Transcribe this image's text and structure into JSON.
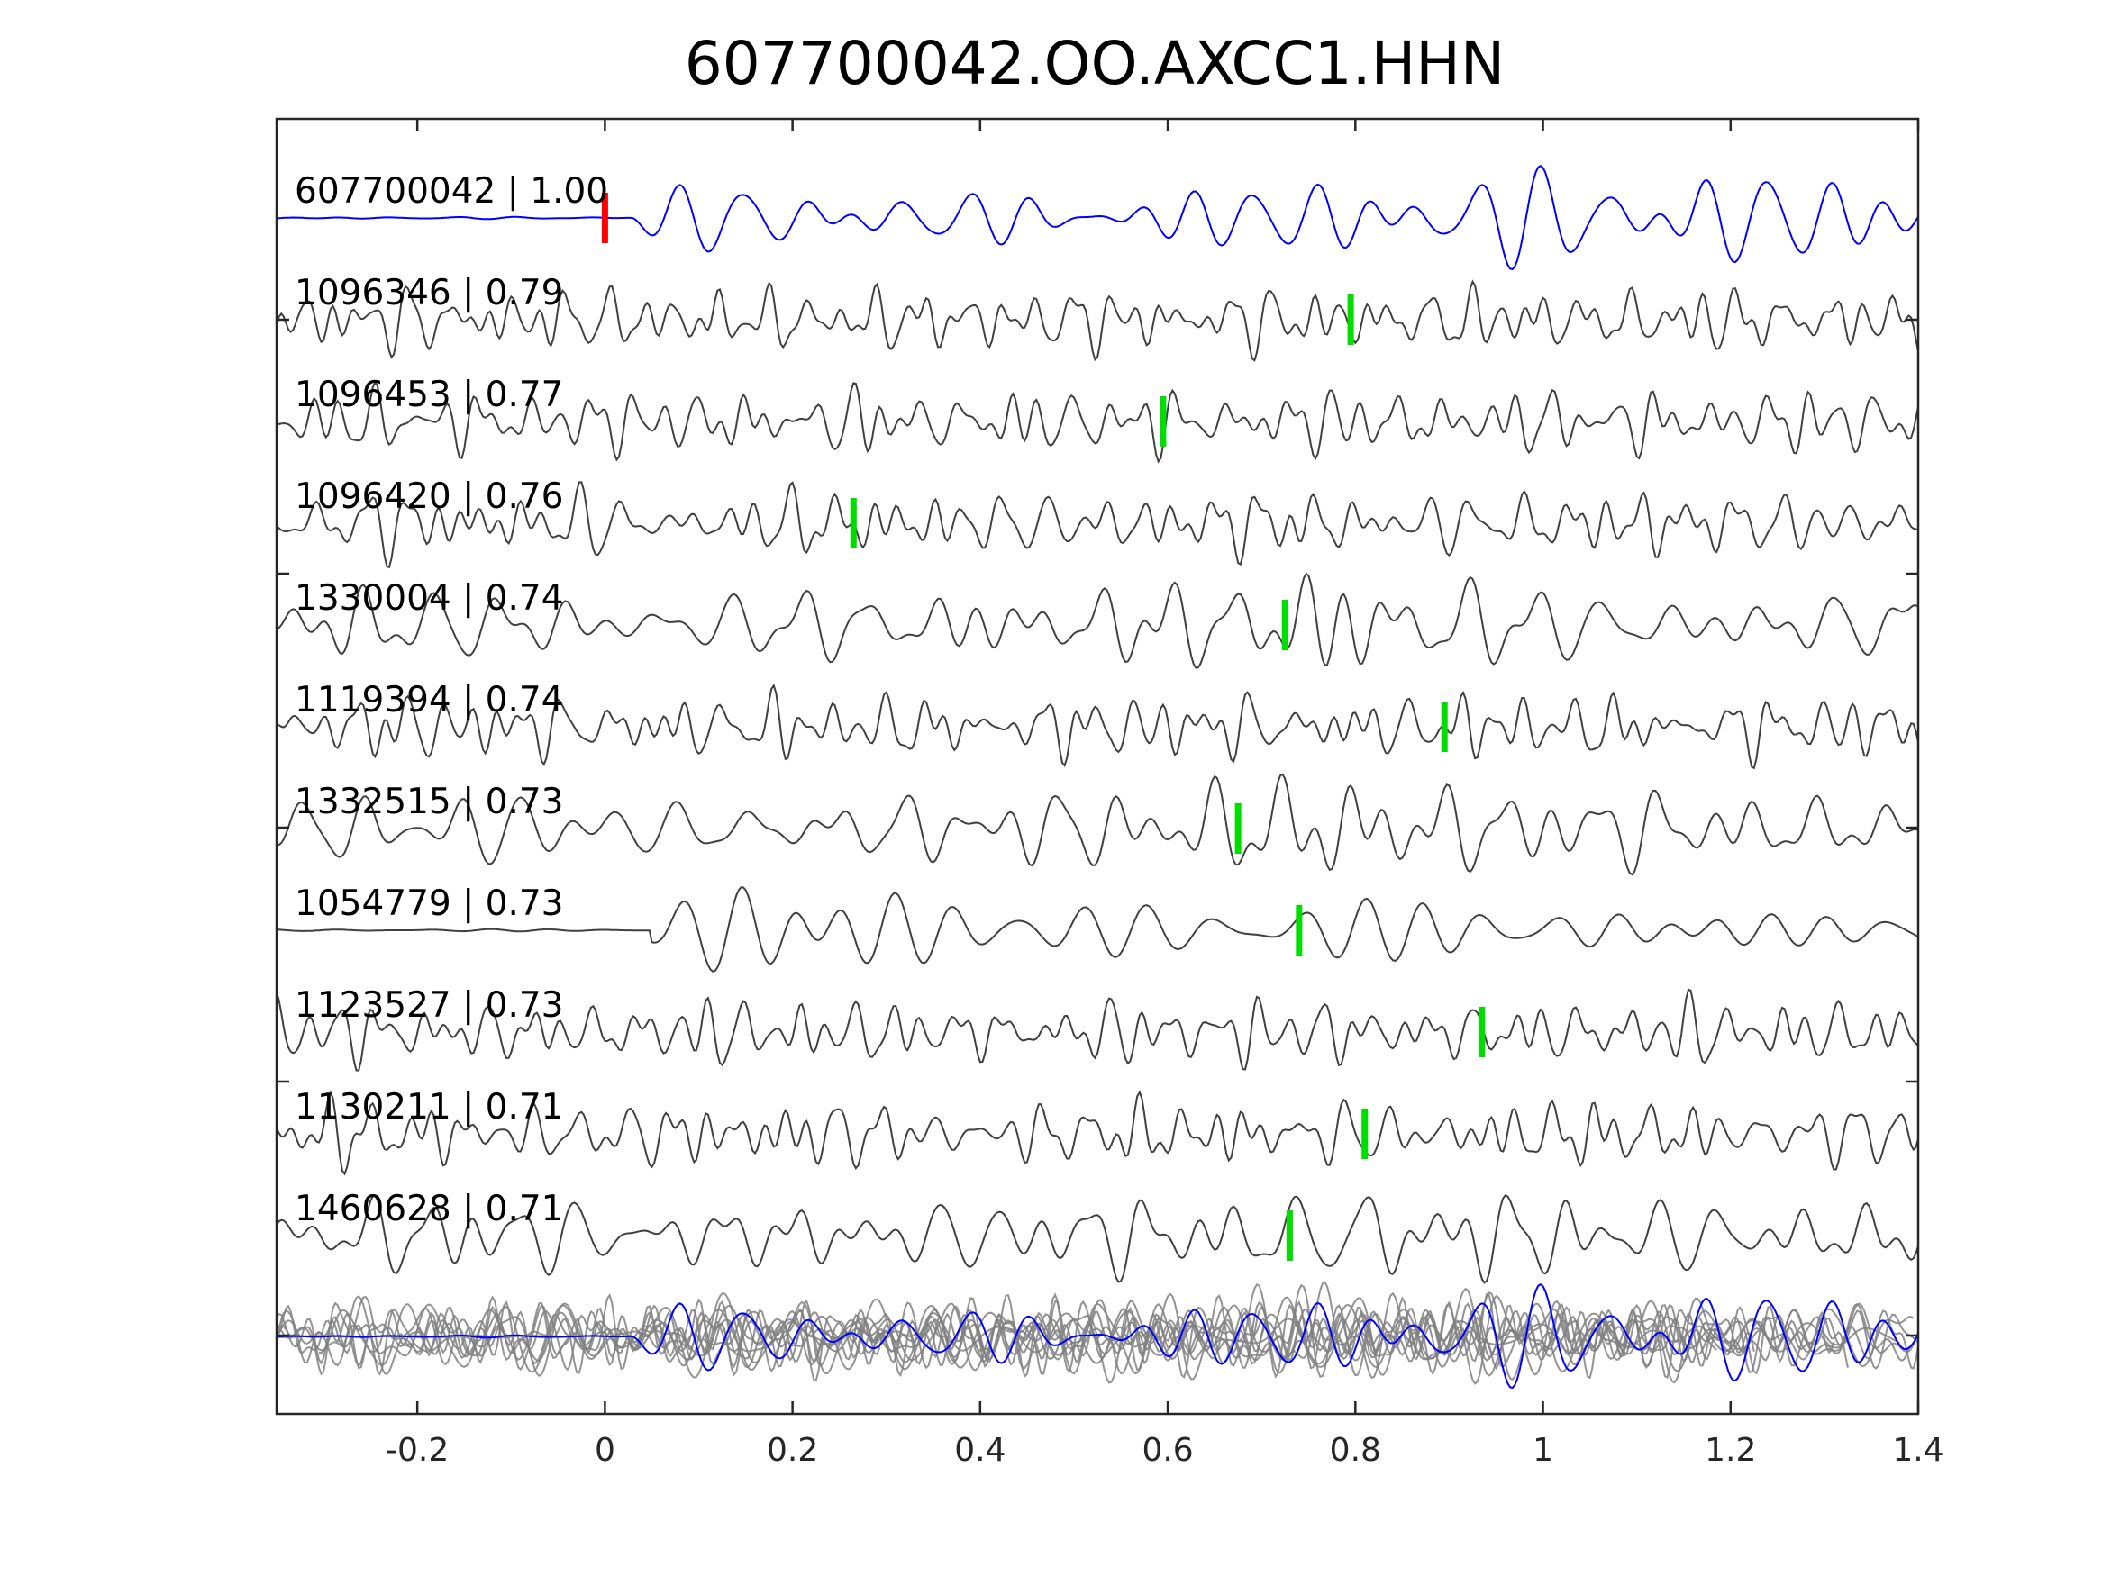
{
  "chart_data": {
    "type": "line",
    "title": "607700042.OO.AXCC1.HHN",
    "xlabel": "",
    "ylabel": "",
    "xlim": [
      -0.35,
      1.4
    ],
    "xticks": [
      {
        "value": -0.2,
        "label": "-0.2"
      },
      {
        "value": 0,
        "label": "0"
      },
      {
        "value": 0.2,
        "label": "0.2"
      },
      {
        "value": 0.4,
        "label": "0.4"
      },
      {
        "value": 0.6,
        "label": "0.6"
      },
      {
        "value": 0.8,
        "label": "0.8"
      },
      {
        "value": 1,
        "label": "1"
      },
      {
        "value": 1.2,
        "label": "1.2"
      },
      {
        "value": 1.4,
        "label": "1.4"
      }
    ],
    "grid": false,
    "colors": {
      "template": "#0000ff",
      "match": "#404040",
      "overlay": "#808080",
      "pick_template": "#ff0000",
      "pick_match": "#00dd00",
      "axes": "#262626"
    },
    "traces": [
      {
        "id": "607700042",
        "cc": "1.00",
        "label": "607700042 | 1.00",
        "pick": 0.0,
        "template": true,
        "onset": 0.03,
        "style": "smooth",
        "seed": 11
      },
      {
        "id": "1096346",
        "cc": "0.79",
        "label": "1096346 | 0.79",
        "pick": 0.795,
        "onset": -1,
        "style": "noisy",
        "seed": 23
      },
      {
        "id": "1096453",
        "cc": "0.77",
        "label": "1096453 | 0.77",
        "pick": 0.595,
        "onset": -1,
        "style": "noisy",
        "seed": 37
      },
      {
        "id": "1096420",
        "cc": "0.76",
        "label": "1096420 | 0.76",
        "pick": 0.265,
        "onset": -1,
        "style": "noisy",
        "seed": 41
      },
      {
        "id": "1330004",
        "cc": "0.74",
        "label": "1330004 | 0.74",
        "pick": 0.725,
        "onset": -1,
        "style": "medium",
        "seed": 53
      },
      {
        "id": "1119394",
        "cc": "0.74",
        "label": "1119394 | 0.74",
        "pick": 0.895,
        "onset": -1,
        "style": "noisy",
        "seed": 67
      },
      {
        "id": "1332515",
        "cc": "0.73",
        "label": "1332515 | 0.73",
        "pick": 0.675,
        "onset": -1,
        "style": "medium",
        "seed": 71
      },
      {
        "id": "1054779",
        "cc": "0.73",
        "label": "1054779 | 0.73",
        "pick": 0.74,
        "onset": 0.05,
        "style": "smooth",
        "seed": 83
      },
      {
        "id": "1123527",
        "cc": "0.73",
        "label": "1123527 | 0.73",
        "pick": 0.935,
        "onset": -1,
        "style": "noisy",
        "seed": 97
      },
      {
        "id": "1130211",
        "cc": "0.71",
        "label": "1130211 | 0.71",
        "pick": 0.81,
        "onset": -1,
        "style": "noisy",
        "seed": 101
      },
      {
        "id": "1460628",
        "cc": "0.71",
        "label": "1460628 | 0.71",
        "pick": 0.73,
        "onset": -1,
        "style": "medium",
        "seed": 113
      }
    ],
    "overlay": {
      "description": "stacked overlay of all traces",
      "includes_template": true
    }
  }
}
